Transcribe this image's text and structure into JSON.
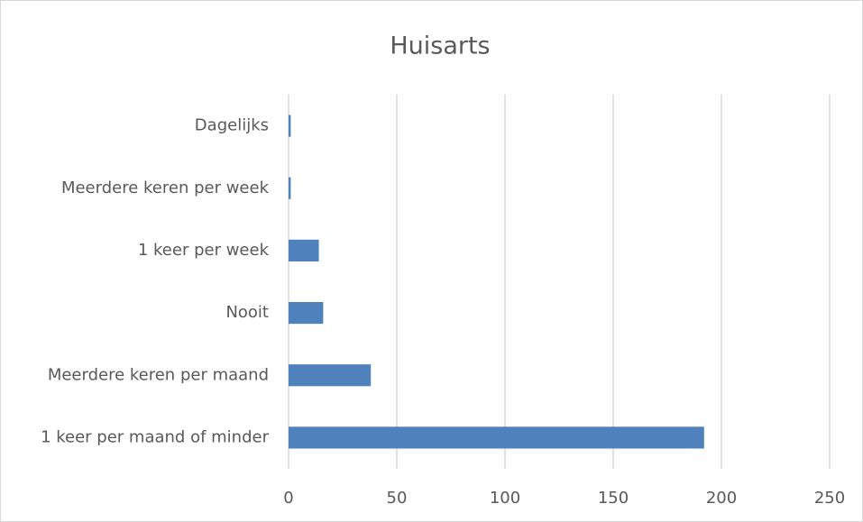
{
  "chart_data": {
    "type": "bar",
    "orientation": "horizontal",
    "title": "Huisarts",
    "categories": [
      "Dagelijks",
      "Meerdere keren per week",
      "1 keer per week",
      "Nooit",
      "Meerdere keren per maand",
      "1 keer per maand of minder"
    ],
    "values": [
      1,
      1,
      14,
      16,
      38,
      192
    ],
    "color": "#4f81bd",
    "xlim": [
      0,
      250
    ],
    "xticks": [
      0,
      50,
      100,
      150,
      200,
      250
    ],
    "grid": true
  }
}
